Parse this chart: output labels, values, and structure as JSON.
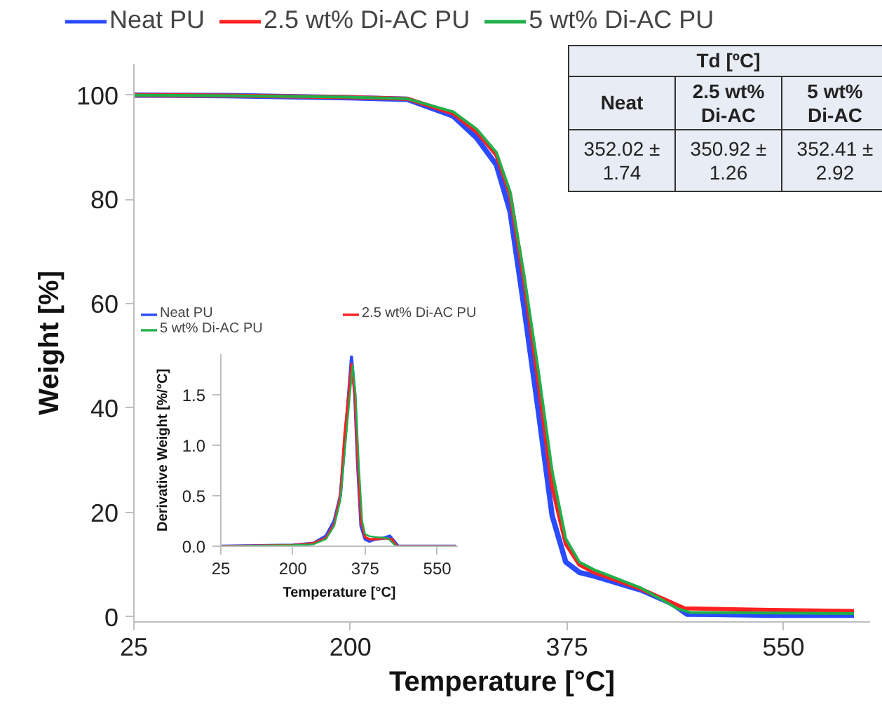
{
  "chart_data": [
    {
      "type": "line",
      "xlabel": "Temperature [°C]",
      "ylabel": "Weight [%]",
      "xlim": [
        25,
        620
      ],
      "ylim": [
        -1,
        106
      ],
      "xticks": [
        25,
        200,
        375,
        550
      ],
      "yticks": [
        0,
        20,
        40,
        60,
        80,
        100
      ],
      "legend": "top",
      "series": [
        {
          "name": "Neat PU",
          "color": "#2a4bff",
          "x": [
            25,
            100,
            200,
            246,
            283,
            302,
            318,
            329,
            340,
            352,
            363,
            374,
            385,
            397,
            435,
            460,
            472,
            540,
            607
          ],
          "values": [
            100,
            99.9,
            99.5,
            99.2,
            96,
            91.8,
            86.6,
            77.7,
            59.8,
            39.2,
            19.4,
            10.5,
            8.5,
            7.8,
            5.1,
            2.5,
            0.5,
            0.3,
            0.3
          ]
        },
        {
          "name": "2.5 wt% Di-AC PU",
          "color": "#ff2020",
          "x": [
            25,
            100,
            200,
            246,
            283,
            302,
            318,
            329,
            340,
            352,
            363,
            374,
            385,
            397,
            435,
            470,
            540,
            607
          ],
          "values": [
            100,
            99.9,
            99.6,
            99.3,
            96.5,
            93,
            88.5,
            81,
            65,
            45,
            25,
            14,
            10,
            8.5,
            5.3,
            1.6,
            1.3,
            1.1
          ]
        },
        {
          "name": "5 wt% Di-AC PU",
          "color": "#1fb04a",
          "x": [
            25,
            100,
            200,
            246,
            283,
            302,
            318,
            329,
            340,
            352,
            363,
            374,
            385,
            397,
            435,
            465,
            475,
            540,
            607
          ],
          "values": [
            100,
            99.9,
            99.6,
            99.3,
            96.8,
            93.5,
            89,
            81.5,
            66,
            47,
            28,
            15,
            10.5,
            9,
            5.5,
            1.5,
            0.8,
            0.7,
            0.6
          ]
        }
      ]
    },
    {
      "type": "line",
      "xlabel": "Temperature [°C]",
      "ylabel": "Derivative Weight [%/°C]",
      "xlim": [
        25,
        600
      ],
      "ylim": [
        0,
        1.9
      ],
      "xticks": [
        25,
        200,
        375,
        550
      ],
      "yticks": [
        {
          "value": 0,
          "label": "0.0"
        },
        1.5,
        {
          "value": 1,
          "label": "1.0"
        },
        0.5
      ],
      "legend": "top",
      "series": [
        {
          "name": "Neat PU",
          "color": "#2a4bff",
          "x": [
            25,
            200,
            250,
            280,
            300,
            315,
            325,
            335,
            342,
            350,
            357,
            365,
            375,
            385,
            400,
            420,
            435,
            445,
            455,
            595
          ],
          "values": [
            0,
            0.01,
            0.03,
            0.1,
            0.25,
            0.5,
            1.0,
            1.5,
            1.87,
            1.5,
            0.8,
            0.2,
            0.07,
            0.05,
            0.07,
            0.08,
            0.1,
            0.05,
            0,
            0
          ]
        },
        {
          "name": "2.5 wt% Di-AC PU",
          "color": "#ff2020",
          "x": [
            25,
            200,
            250,
            280,
            300,
            315,
            325,
            335,
            342,
            350,
            357,
            365,
            375,
            385,
            400,
            420,
            440,
            452,
            595
          ],
          "values": [
            0,
            0.01,
            0.03,
            0.08,
            0.22,
            0.5,
            1.1,
            1.5,
            1.8,
            1.5,
            0.85,
            0.25,
            0.09,
            0.07,
            0.07,
            0.08,
            0.07,
            0,
            0
          ]
        },
        {
          "name": "5 wt% Di-AC PU",
          "color": "#1fb04a",
          "x": [
            25,
            200,
            250,
            280,
            300,
            315,
            325,
            335,
            345,
            352,
            360,
            368,
            375,
            385,
            400,
            430,
            450,
            595
          ],
          "values": [
            0,
            0.01,
            0.02,
            0.07,
            0.2,
            0.45,
            0.9,
            1.35,
            1.79,
            1.5,
            0.8,
            0.25,
            0.12,
            0.1,
            0.09,
            0.08,
            0,
            0
          ]
        }
      ]
    },
    {
      "type": "other",
      "title": "Td [ºC]",
      "categories": [
        "Neat",
        "2.5 wt% Di-AC",
        "5 wt% Di-AC"
      ],
      "annotations": [
        "352.02 ± 1.74",
        "350.92 ± 1.26",
        "352.41 ± 2.92"
      ]
    }
  ]
}
